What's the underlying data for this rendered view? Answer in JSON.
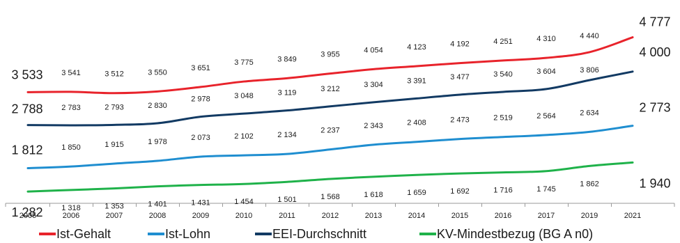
{
  "chart_data": {
    "type": "line",
    "categories": [
      "2005",
      "2006",
      "2007",
      "2008",
      "2009",
      "2010",
      "2011",
      "2012",
      "2013",
      "2014",
      "2015",
      "2016",
      "2017",
      "2019",
      "2021"
    ],
    "series": [
      {
        "name": "Ist-Gehalt",
        "color": "#e8232b",
        "values": [
          3533,
          3541,
          3512,
          3550,
          3651,
          3775,
          3849,
          3955,
          4054,
          4123,
          4192,
          4251,
          4310,
          4440,
          4777
        ],
        "labels": [
          "3 533",
          "3 541",
          "3 512",
          "3 550",
          "3 651",
          "3 775",
          "3 849",
          "3 955",
          "4 054",
          "4 123",
          "4 192",
          "4 251",
          "4 310",
          "4 440",
          "4 777"
        ]
      },
      {
        "name": "Ist-Lohn",
        "color": "#1f8ed0",
        "values": [
          1812,
          1850,
          1915,
          1978,
          2073,
          2102,
          2134,
          2237,
          2343,
          2408,
          2473,
          2519,
          2564,
          2634,
          2773
        ],
        "labels": [
          "1 812",
          "1 850",
          "1 915",
          "1 978",
          "2 073",
          "2 102",
          "2 134",
          "2 237",
          "2 343",
          "2 408",
          "2 473",
          "2 519",
          "2 564",
          "2 634",
          "2 773"
        ]
      },
      {
        "name": "EEI-Durchschnitt",
        "color": "#123a63",
        "values": [
          2788,
          2783,
          2793,
          2830,
          2978,
          3048,
          3119,
          3212,
          3304,
          3391,
          3477,
          3540,
          3604,
          3806,
          4000
        ],
        "labels": [
          "2 788",
          "2 783",
          "2 793",
          "2 830",
          "2 978",
          "3 048",
          "3 119",
          "3 212",
          "3 304",
          "3 391",
          "3 477",
          "3 540",
          "3 604",
          "3 806",
          "4 000"
        ]
      },
      {
        "name": "KV-Mindestbezug (BG A n0)",
        "color": "#1fb24a",
        "values": [
          1282,
          1318,
          1353,
          1401,
          1431,
          1454,
          1501,
          1568,
          1618,
          1659,
          1692,
          1716,
          1745,
          1862,
          1940
        ],
        "labels": [
          "1 282",
          "1 318",
          "1 353",
          "1 401",
          "1 431",
          "1 454",
          "1 501",
          "1 568",
          "1 618",
          "1 659",
          "1 692",
          "1 716",
          "1 745",
          "1 862",
          "1 940"
        ]
      }
    ],
    "legend_position": "bottom",
    "grid": false
  }
}
